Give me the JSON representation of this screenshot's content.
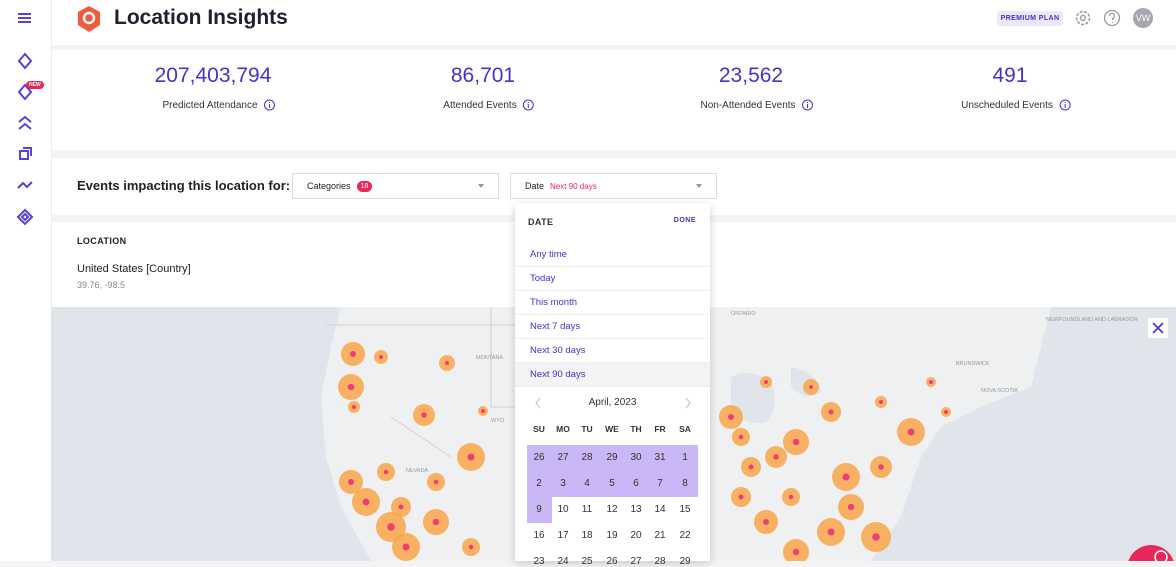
{
  "header": {
    "title": "Location Insights",
    "plan": "PREMIUM PLAN",
    "avatar": "VW"
  },
  "sidebar": {
    "badge": "NEW"
  },
  "stats": [
    {
      "value": "207,403,794",
      "label": "Predicted Attendance"
    },
    {
      "value": "86,701",
      "label": "Attended Events"
    },
    {
      "value": "23,562",
      "label": "Non-Attended Events"
    },
    {
      "value": "491",
      "label": "Unscheduled Events"
    }
  ],
  "filters": {
    "prompt": "Events impacting this location for:",
    "categories": {
      "label": "Categories",
      "count": "18"
    },
    "date": {
      "label": "Date",
      "value": "Next 90 days"
    }
  },
  "location": {
    "heading": "LOCATION",
    "name": "United States [Country]",
    "coordinates": "39.76, -98.5"
  },
  "date_menu": {
    "title": "DATE",
    "action": "DONE",
    "options": [
      "Any time",
      "Today",
      "This month",
      "Next 7 days",
      "Next 30 days",
      "Next 90 days"
    ]
  },
  "calendar": {
    "month": "April, 2023",
    "weekdays": [
      "SU",
      "MO",
      "TU",
      "WE",
      "TH",
      "FR",
      "SA"
    ],
    "weeks": [
      [
        "26",
        "27",
        "28",
        "29",
        "30",
        "31",
        "1"
      ],
      [
        "2",
        "3",
        "4",
        "5",
        "6",
        "7",
        "8"
      ],
      [
        "9",
        "10",
        "11",
        "12",
        "13",
        "14",
        "15"
      ],
      [
        "16",
        "17",
        "18",
        "19",
        "20",
        "21",
        "22"
      ],
      [
        "23",
        "24",
        "25",
        "26",
        "27",
        "28",
        "29"
      ]
    ]
  },
  "map": {
    "labels": [
      "MONTANA",
      "NEVADA",
      "WYO",
      "ONTARIO",
      "NEWFOUNDLAND AND LABRADOR",
      "BRUNSWICK",
      "NOVA SCOTIA"
    ]
  }
}
